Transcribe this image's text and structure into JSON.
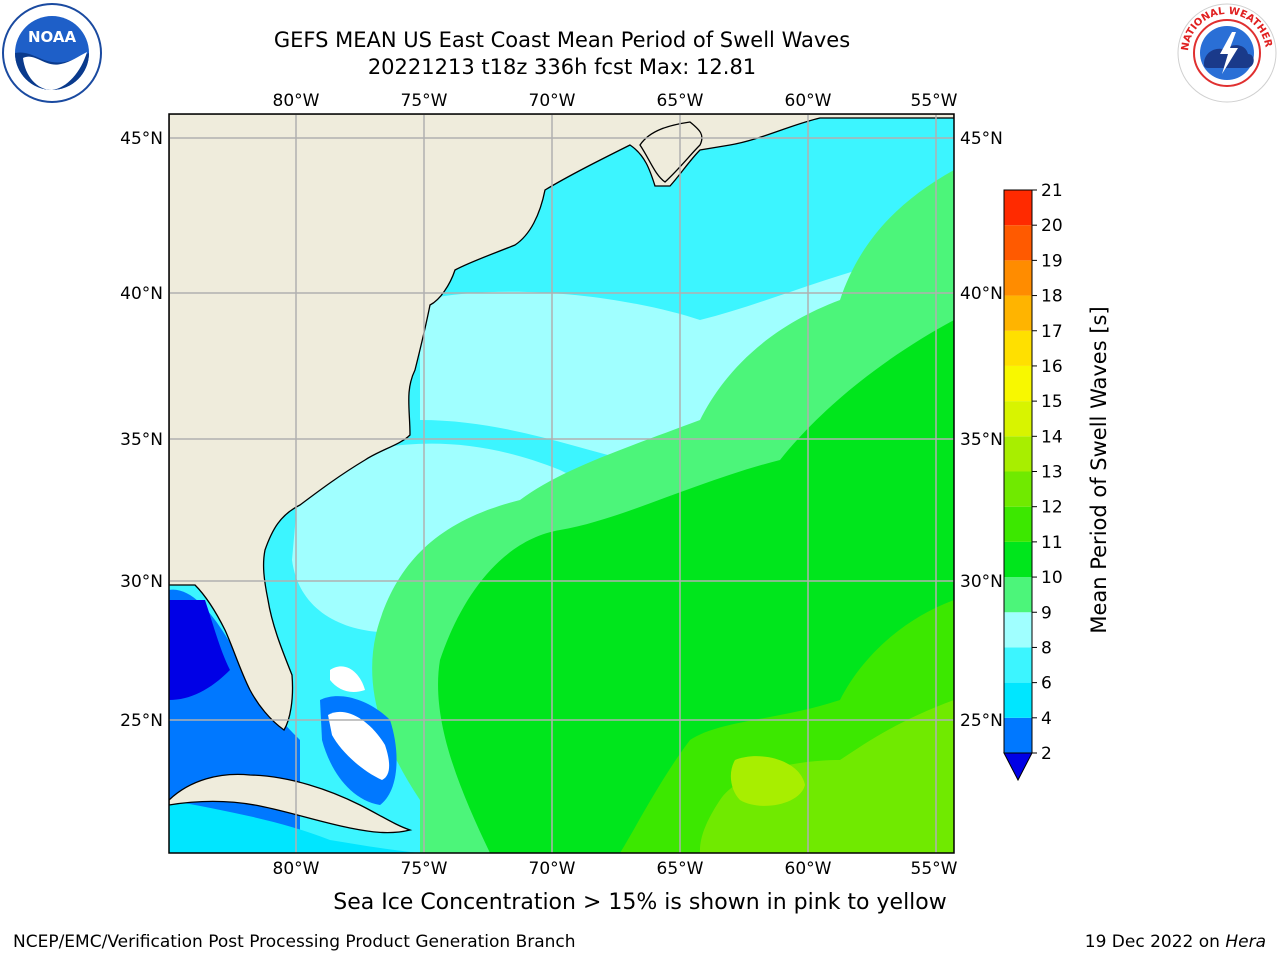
{
  "header": {
    "title_line1": "GEFS MEAN US East Coast Mean Period of Swell Waves",
    "title_line2": "20221213 t18z 336h fcst   Max: 12.81"
  },
  "logos": {
    "noaa": {
      "label": "NOAA",
      "ring_text": "NATIONAL OCEANIC AND ATMOSPHERIC ADMINISTRATION · U.S. DEPARTMENT OF COMMERCE"
    },
    "nws": {
      "ring_text": "NATIONAL WEATHER SERVICE"
    }
  },
  "map": {
    "lon_ticks": [
      "80°W",
      "75°W",
      "70°W",
      "65°W",
      "60°W",
      "55°W"
    ],
    "lat_ticks": [
      "45°N",
      "40°N",
      "35°N",
      "30°N",
      "25°N"
    ],
    "extent": {
      "lon": [
        -85,
        -54.6
      ],
      "lat": [
        20.5,
        45.8
      ]
    },
    "land_color": "#efecdc",
    "grid_color": "#b0b0b0"
  },
  "colorbar": {
    "label": "Mean Period of Swell Waves [s]",
    "tick_labels": [
      "2",
      "4",
      "6",
      "8",
      "9",
      "10",
      "11",
      "12",
      "13",
      "14",
      "15",
      "16",
      "17",
      "18",
      "19",
      "20",
      "21"
    ],
    "colors": [
      "#0078ff",
      "#00e6ff",
      "#3cf5ff",
      "#a0ffff",
      "#4cf57a",
      "#00e61c",
      "#3ce800",
      "#70ea00",
      "#a8ee00",
      "#d8f400",
      "#f8f800",
      "#ffe000",
      "#ffb400",
      "#ff8c00",
      "#ff5a00",
      "#ff2a00"
    ],
    "under_color": "#0000e6",
    "extend": "min"
  },
  "footer": {
    "ice_note": "Sea Ice Concentration > 15% is shown in pink to yellow",
    "credit": "NCEP/EMC/Verification Post Processing Product Generation Branch",
    "date": "19 Dec 2022 on",
    "machine": "Hera"
  }
}
